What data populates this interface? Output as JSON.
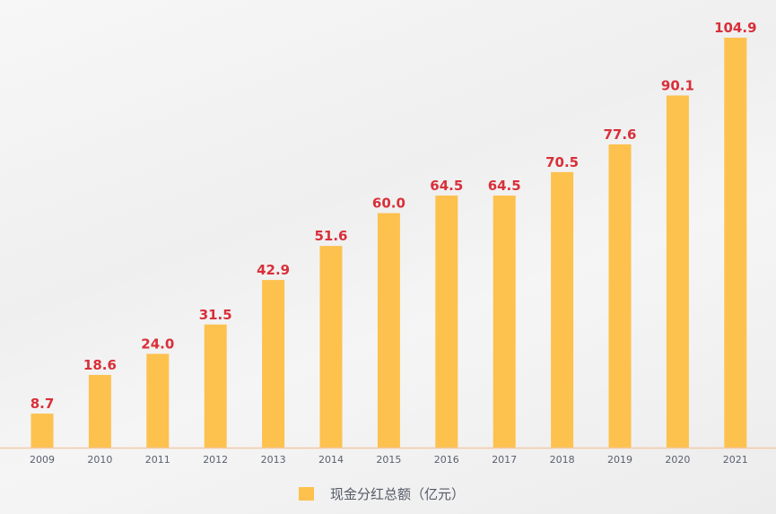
{
  "chart_data": {
    "type": "bar",
    "categories": [
      "2009",
      "2010",
      "2011",
      "2012",
      "2013",
      "2014",
      "2015",
      "2016",
      "2017",
      "2018",
      "2019",
      "2020",
      "2021"
    ],
    "values": [
      8.7,
      18.6,
      24.0,
      31.5,
      42.9,
      51.6,
      60.0,
      64.5,
      64.5,
      70.5,
      77.6,
      90.1,
      104.9
    ],
    "labels": [
      "8.7",
      "18.6",
      "24.0",
      "31.5",
      "42.9",
      "51.6",
      "60.0",
      "64.5",
      "64.5",
      "70.5",
      "77.6",
      "90.1",
      "104.9"
    ],
    "series_name": "现金分红总额（亿元）",
    "ylim": [
      0,
      104.9
    ],
    "legend_position": "bottom",
    "grid": false,
    "colors": {
      "bar": "#fdc14e",
      "label": "#d8303a",
      "axis": "#f3c9a8",
      "tick": "#5a6070"
    }
  }
}
